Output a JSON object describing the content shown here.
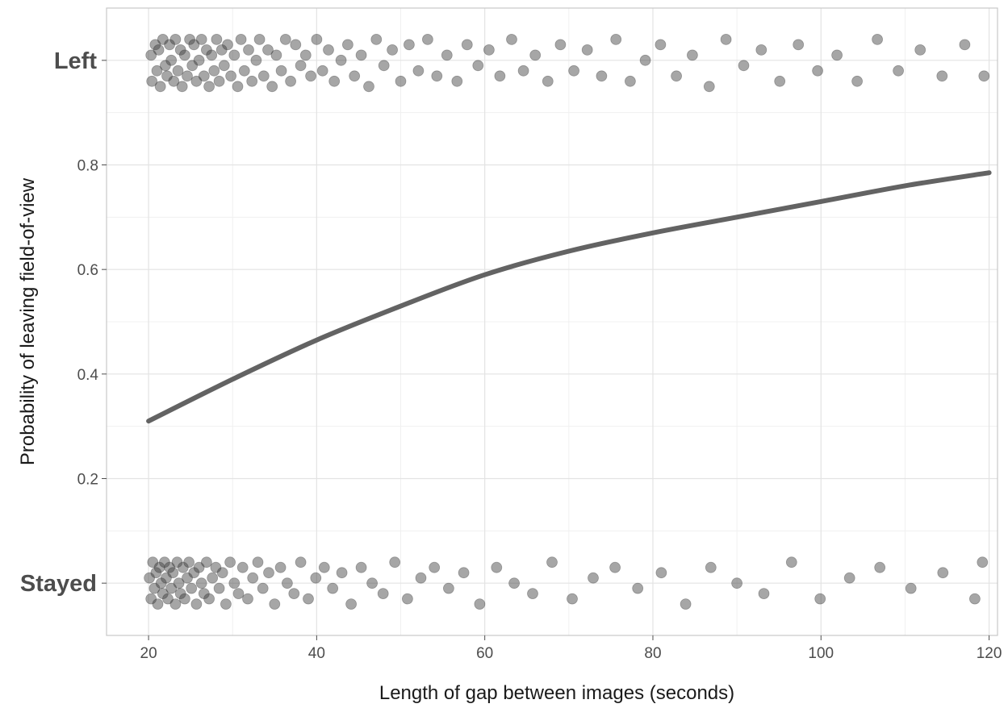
{
  "chart_data": {
    "type": "scatter",
    "title": "",
    "xlabel": "Length of gap between images (seconds)",
    "ylabel": "Probability of leaving field-of-view",
    "xlim": [
      15,
      121
    ],
    "ylim": [
      -0.1,
      1.1
    ],
    "x_ticks": [
      20,
      40,
      60,
      80,
      100,
      120
    ],
    "x_tick_labels": [
      "20",
      "40",
      "60",
      "80",
      "100",
      "120"
    ],
    "y_ticks": [
      0.2,
      0.4,
      0.6,
      0.8
    ],
    "y_tick_labels": [
      "0.2",
      "0.4",
      "0.6",
      "0.8"
    ],
    "y_categories": [
      {
        "label": "Left",
        "value": 1
      },
      {
        "label": "Stayed",
        "value": 0
      }
    ],
    "grid": true,
    "legend": "none",
    "fitted_curve": {
      "x": [
        20,
        30,
        40,
        50,
        60,
        70,
        80,
        90,
        100,
        110,
        120
      ],
      "y": [
        0.31,
        0.39,
        0.465,
        0.53,
        0.59,
        0.635,
        0.67,
        0.7,
        0.73,
        0.76,
        0.785
      ]
    },
    "points_left": [
      [
        20.3,
        1.01
      ],
      [
        20.4,
        0.96
      ],
      [
        20.8,
        1.03
      ],
      [
        21.0,
        0.98
      ],
      [
        21.2,
        1.02
      ],
      [
        21.4,
        0.95
      ],
      [
        21.7,
        1.04
      ],
      [
        22.0,
        0.99
      ],
      [
        22.2,
        0.97
      ],
      [
        22.5,
        1.03
      ],
      [
        22.7,
        1.0
      ],
      [
        23.0,
        0.96
      ],
      [
        23.2,
        1.04
      ],
      [
        23.5,
        0.98
      ],
      [
        23.8,
        1.02
      ],
      [
        24.0,
        0.95
      ],
      [
        24.3,
        1.01
      ],
      [
        24.6,
        0.97
      ],
      [
        24.9,
        1.04
      ],
      [
        25.2,
        0.99
      ],
      [
        25.4,
        1.03
      ],
      [
        25.7,
        0.96
      ],
      [
        26.0,
        1.0
      ],
      [
        26.3,
        1.04
      ],
      [
        26.6,
        0.97
      ],
      [
        26.9,
        1.02
      ],
      [
        27.2,
        0.95
      ],
      [
        27.5,
        1.01
      ],
      [
        27.8,
        0.98
      ],
      [
        28.1,
        1.04
      ],
      [
        28.4,
        0.96
      ],
      [
        28.7,
        1.02
      ],
      [
        29.0,
        0.99
      ],
      [
        29.4,
        1.03
      ],
      [
        29.8,
        0.97
      ],
      [
        30.2,
        1.01
      ],
      [
        30.6,
        0.95
      ],
      [
        31.0,
        1.04
      ],
      [
        31.4,
        0.98
      ],
      [
        31.9,
        1.02
      ],
      [
        32.3,
        0.96
      ],
      [
        32.8,
        1.0
      ],
      [
        33.2,
        1.04
      ],
      [
        33.7,
        0.97
      ],
      [
        34.2,
        1.02
      ],
      [
        34.7,
        0.95
      ],
      [
        35.2,
        1.01
      ],
      [
        35.8,
        0.98
      ],
      [
        36.3,
        1.04
      ],
      [
        36.9,
        0.96
      ],
      [
        37.5,
        1.03
      ],
      [
        38.1,
        0.99
      ],
      [
        38.7,
        1.01
      ],
      [
        39.3,
        0.97
      ],
      [
        40.0,
        1.04
      ],
      [
        40.7,
        0.98
      ],
      [
        41.4,
        1.02
      ],
      [
        42.1,
        0.96
      ],
      [
        42.9,
        1.0
      ],
      [
        43.7,
        1.03
      ],
      [
        44.5,
        0.97
      ],
      [
        45.3,
        1.01
      ],
      [
        46.2,
        0.95
      ],
      [
        47.1,
        1.04
      ],
      [
        48.0,
        0.99
      ],
      [
        49.0,
        1.02
      ],
      [
        50.0,
        0.96
      ],
      [
        51.0,
        1.03
      ],
      [
        52.1,
        0.98
      ],
      [
        53.2,
        1.04
      ],
      [
        54.3,
        0.97
      ],
      [
        55.5,
        1.01
      ],
      [
        56.7,
        0.96
      ],
      [
        57.9,
        1.03
      ],
      [
        59.2,
        0.99
      ],
      [
        60.5,
        1.02
      ],
      [
        61.8,
        0.97
      ],
      [
        63.2,
        1.04
      ],
      [
        64.6,
        0.98
      ],
      [
        66.0,
        1.01
      ],
      [
        67.5,
        0.96
      ],
      [
        69.0,
        1.03
      ],
      [
        70.6,
        0.98
      ],
      [
        72.2,
        1.02
      ],
      [
        73.9,
        0.97
      ],
      [
        75.6,
        1.04
      ],
      [
        77.3,
        0.96
      ],
      [
        79.1,
        1.0
      ],
      [
        80.9,
        1.03
      ],
      [
        82.8,
        0.97
      ],
      [
        84.7,
        1.01
      ],
      [
        86.7,
        0.95
      ],
      [
        88.7,
        1.04
      ],
      [
        90.8,
        0.99
      ],
      [
        92.9,
        1.02
      ],
      [
        95.1,
        0.96
      ],
      [
        97.3,
        1.03
      ],
      [
        99.6,
        0.98
      ],
      [
        101.9,
        1.01
      ],
      [
        104.3,
        0.96
      ],
      [
        106.7,
        1.04
      ],
      [
        109.2,
        0.98
      ],
      [
        111.8,
        1.02
      ],
      [
        114.4,
        0.97
      ],
      [
        117.1,
        1.03
      ],
      [
        119.4,
        0.97
      ]
    ],
    "points_stayed": [
      [
        20.1,
        0.01
      ],
      [
        20.3,
        -0.03
      ],
      [
        20.5,
        0.04
      ],
      [
        20.7,
        -0.01
      ],
      [
        20.9,
        0.02
      ],
      [
        21.1,
        -0.04
      ],
      [
        21.3,
        0.03
      ],
      [
        21.5,
        0.0
      ],
      [
        21.7,
        -0.02
      ],
      [
        21.9,
        0.04
      ],
      [
        22.1,
        0.01
      ],
      [
        22.3,
        -0.03
      ],
      [
        22.5,
        0.03
      ],
      [
        22.7,
        -0.01
      ],
      [
        22.9,
        0.02
      ],
      [
        23.2,
        -0.04
      ],
      [
        23.4,
        0.04
      ],
      [
        23.6,
        0.0
      ],
      [
        23.8,
        -0.02
      ],
      [
        24.1,
        0.03
      ],
      [
        24.3,
        -0.03
      ],
      [
        24.6,
        0.01
      ],
      [
        24.8,
        0.04
      ],
      [
        25.1,
        -0.01
      ],
      [
        25.4,
        0.02
      ],
      [
        25.7,
        -0.04
      ],
      [
        26.0,
        0.03
      ],
      [
        26.3,
        0.0
      ],
      [
        26.6,
        -0.02
      ],
      [
        26.9,
        0.04
      ],
      [
        27.2,
        -0.03
      ],
      [
        27.6,
        0.01
      ],
      [
        28.0,
        0.03
      ],
      [
        28.4,
        -0.01
      ],
      [
        28.8,
        0.02
      ],
      [
        29.2,
        -0.04
      ],
      [
        29.7,
        0.04
      ],
      [
        30.2,
        0.0
      ],
      [
        30.7,
        -0.02
      ],
      [
        31.2,
        0.03
      ],
      [
        31.8,
        -0.03
      ],
      [
        32.4,
        0.01
      ],
      [
        33.0,
        0.04
      ],
      [
        33.6,
        -0.01
      ],
      [
        34.3,
        0.02
      ],
      [
        35.0,
        -0.04
      ],
      [
        35.7,
        0.03
      ],
      [
        36.5,
        0.0
      ],
      [
        37.3,
        -0.02
      ],
      [
        38.1,
        0.04
      ],
      [
        39.0,
        -0.03
      ],
      [
        39.9,
        0.01
      ],
      [
        40.9,
        0.03
      ],
      [
        41.9,
        -0.01
      ],
      [
        43.0,
        0.02
      ],
      [
        44.1,
        -0.04
      ],
      [
        45.3,
        0.03
      ],
      [
        46.6,
        0.0
      ],
      [
        47.9,
        -0.02
      ],
      [
        49.3,
        0.04
      ],
      [
        50.8,
        -0.03
      ],
      [
        52.4,
        0.01
      ],
      [
        54.0,
        0.03
      ],
      [
        55.7,
        -0.01
      ],
      [
        57.5,
        0.02
      ],
      [
        59.4,
        -0.04
      ],
      [
        61.4,
        0.03
      ],
      [
        63.5,
        0.0
      ],
      [
        65.7,
        -0.02
      ],
      [
        68.0,
        0.04
      ],
      [
        70.4,
        -0.03
      ],
      [
        72.9,
        0.01
      ],
      [
        75.5,
        0.03
      ],
      [
        78.2,
        -0.01
      ],
      [
        81.0,
        0.02
      ],
      [
        83.9,
        -0.04
      ],
      [
        86.9,
        0.03
      ],
      [
        90.0,
        0.0
      ],
      [
        93.2,
        -0.02
      ],
      [
        96.5,
        0.04
      ],
      [
        99.9,
        -0.03
      ],
      [
        103.4,
        0.01
      ],
      [
        107.0,
        0.03
      ],
      [
        110.7,
        -0.01
      ],
      [
        114.5,
        0.02
      ],
      [
        118.3,
        -0.03
      ],
      [
        119.2,
        0.04
      ]
    ]
  }
}
